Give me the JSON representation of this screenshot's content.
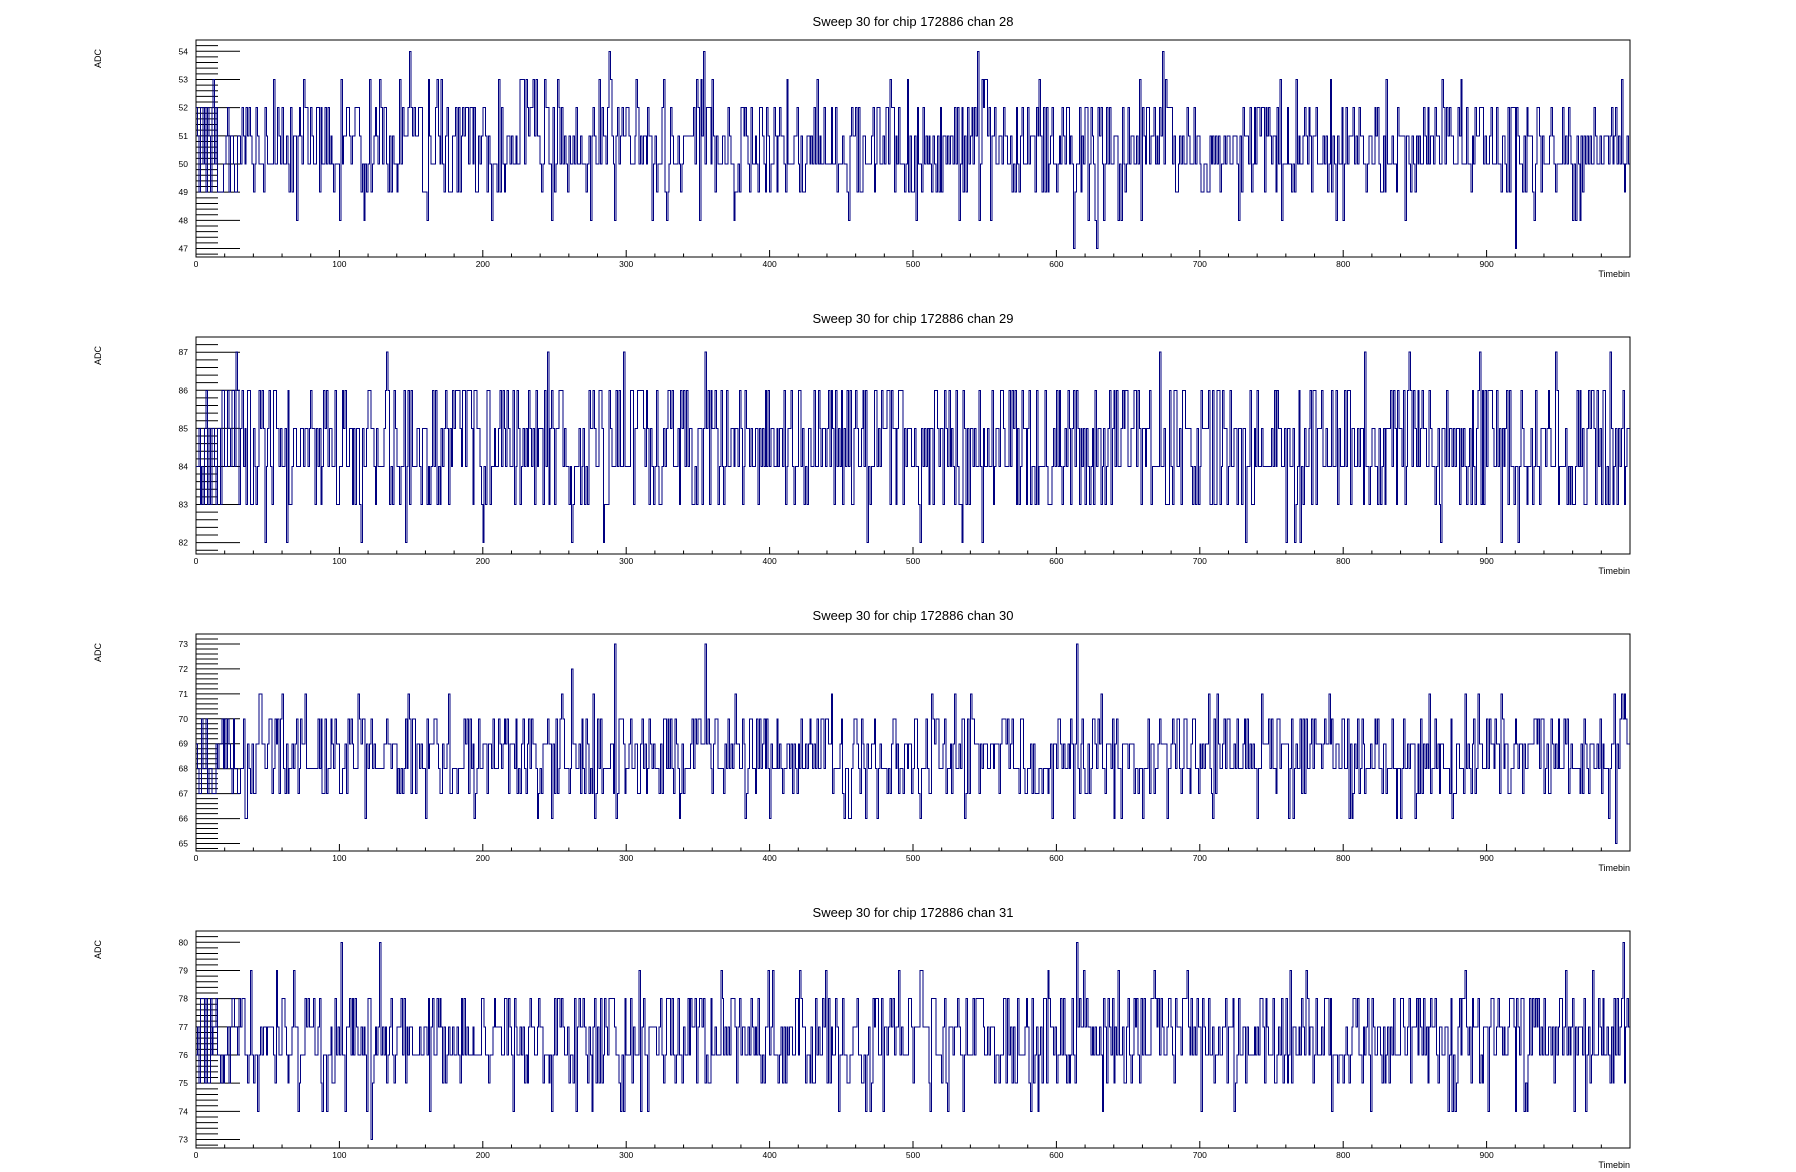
{
  "chart_data": [
    {
      "type": "line",
      "title": "Sweep 30 for chip 172886 chan 28",
      "xlabel": "Timebin",
      "ylabel": "ADC",
      "xlim": [
        0,
        1000
      ],
      "ylim": [
        46.7,
        54.4
      ],
      "x_ticks": [
        0,
        100,
        200,
        300,
        400,
        500,
        600,
        700,
        800,
        900
      ],
      "y_ticks": [
        47,
        48,
        49,
        50,
        51,
        52,
        53,
        54
      ],
      "color": "#000080",
      "step": true,
      "baseline": 50,
      "spikes": [
        {
          "x": 12,
          "y": 53
        },
        {
          "x": 48,
          "y": 52
        },
        {
          "x": 70,
          "y": 48
        },
        {
          "x": 75,
          "y": 53
        },
        {
          "x": 100,
          "y": 48
        },
        {
          "x": 142,
          "y": 53
        },
        {
          "x": 149,
          "y": 54
        },
        {
          "x": 230,
          "y": 53
        },
        {
          "x": 248,
          "y": 48
        },
        {
          "x": 281,
          "y": 53
        },
        {
          "x": 288,
          "y": 54
        },
        {
          "x": 292,
          "y": 48
        },
        {
          "x": 318,
          "y": 48
        },
        {
          "x": 354,
          "y": 54
        },
        {
          "x": 375,
          "y": 48
        },
        {
          "x": 412,
          "y": 53
        },
        {
          "x": 464,
          "y": 49
        },
        {
          "x": 484,
          "y": 53
        },
        {
          "x": 502,
          "y": 48
        },
        {
          "x": 532,
          "y": 48
        },
        {
          "x": 545,
          "y": 54
        },
        {
          "x": 612,
          "y": 47
        },
        {
          "x": 628,
          "y": 47
        },
        {
          "x": 633,
          "y": 48
        },
        {
          "x": 659,
          "y": 48
        },
        {
          "x": 658,
          "y": 53
        },
        {
          "x": 674,
          "y": 54
        },
        {
          "x": 676,
          "y": 53
        },
        {
          "x": 757,
          "y": 48
        },
        {
          "x": 800,
          "y": 48
        },
        {
          "x": 791,
          "y": 53
        },
        {
          "x": 843,
          "y": 48
        },
        {
          "x": 869,
          "y": 53
        },
        {
          "x": 920,
          "y": 47
        },
        {
          "x": 933,
          "y": 48
        },
        {
          "x": 962,
          "y": 48
        },
        {
          "x": 994,
          "y": 53
        }
      ]
    },
    {
      "type": "line",
      "title": "Sweep 30 for chip 172886 chan 29",
      "xlabel": "Timebin",
      "ylabel": "ADC",
      "xlim": [
        0,
        1000
      ],
      "ylim": [
        81.7,
        87.4
      ],
      "x_ticks": [
        0,
        100,
        200,
        300,
        400,
        500,
        600,
        700,
        800,
        900
      ],
      "y_ticks": [
        82,
        83,
        84,
        85,
        86,
        87
      ],
      "color": "#000080",
      "step": true,
      "baseline": 84,
      "spikes": [
        {
          "x": 28,
          "y": 87
        },
        {
          "x": 48,
          "y": 82
        },
        {
          "x": 63,
          "y": 82
        },
        {
          "x": 115,
          "y": 82
        },
        {
          "x": 133,
          "y": 87
        },
        {
          "x": 146,
          "y": 82
        },
        {
          "x": 200,
          "y": 82
        },
        {
          "x": 245,
          "y": 87
        },
        {
          "x": 262,
          "y": 82
        },
        {
          "x": 284,
          "y": 82
        },
        {
          "x": 298,
          "y": 87
        },
        {
          "x": 355,
          "y": 87
        },
        {
          "x": 468,
          "y": 82
        },
        {
          "x": 505,
          "y": 82
        },
        {
          "x": 534,
          "y": 82
        },
        {
          "x": 548,
          "y": 82
        },
        {
          "x": 672,
          "y": 87
        },
        {
          "x": 732,
          "y": 82
        },
        {
          "x": 760,
          "y": 82
        },
        {
          "x": 766,
          "y": 82
        },
        {
          "x": 770,
          "y": 82
        },
        {
          "x": 815,
          "y": 87
        },
        {
          "x": 846,
          "y": 87
        },
        {
          "x": 868,
          "y": 82
        },
        {
          "x": 895,
          "y": 87
        },
        {
          "x": 910,
          "y": 82
        },
        {
          "x": 922,
          "y": 82
        },
        {
          "x": 948,
          "y": 87
        },
        {
          "x": 986,
          "y": 87
        }
      ]
    },
    {
      "type": "line",
      "title": "Sweep 30 for chip 172886 chan 30",
      "xlabel": "Timebin",
      "ylabel": "ADC",
      "xlim": [
        0,
        1000
      ],
      "ylim": [
        64.7,
        73.4
      ],
      "x_ticks": [
        0,
        100,
        200,
        300,
        400,
        500,
        600,
        700,
        800,
        900
      ],
      "y_ticks": [
        65,
        66,
        67,
        68,
        69,
        70,
        71,
        72,
        73
      ],
      "color": "#000080",
      "step": true,
      "baseline": 68,
      "spikes": [
        {
          "x": 35,
          "y": 66
        },
        {
          "x": 60,
          "y": 71
        },
        {
          "x": 76,
          "y": 71
        },
        {
          "x": 118,
          "y": 66
        },
        {
          "x": 148,
          "y": 71
        },
        {
          "x": 248,
          "y": 66
        },
        {
          "x": 262,
          "y": 72
        },
        {
          "x": 278,
          "y": 66
        },
        {
          "x": 292,
          "y": 73
        },
        {
          "x": 355,
          "y": 73
        },
        {
          "x": 383,
          "y": 66
        },
        {
          "x": 475,
          "y": 66
        },
        {
          "x": 505,
          "y": 66
        },
        {
          "x": 540,
          "y": 71
        },
        {
          "x": 614,
          "y": 73
        },
        {
          "x": 612,
          "y": 66
        },
        {
          "x": 645,
          "y": 66
        },
        {
          "x": 712,
          "y": 71
        },
        {
          "x": 740,
          "y": 66
        },
        {
          "x": 762,
          "y": 66
        },
        {
          "x": 790,
          "y": 71
        },
        {
          "x": 840,
          "y": 66
        },
        {
          "x": 860,
          "y": 71
        },
        {
          "x": 910,
          "y": 71
        },
        {
          "x": 990,
          "y": 65
        },
        {
          "x": 994,
          "y": 71
        }
      ]
    },
    {
      "type": "line",
      "title": "Sweep 30 for chip 172886 chan 31",
      "xlabel": "Timebin",
      "ylabel": "ADC",
      "xlim": [
        0,
        1000
      ],
      "ylim": [
        72.7,
        80.4
      ],
      "x_ticks": [
        0,
        100,
        200,
        300,
        400,
        500,
        600,
        700,
        800,
        900
      ],
      "y_ticks": [
        73,
        74,
        75,
        76,
        77,
        78,
        79,
        80
      ],
      "color": "#000080",
      "step": true,
      "baseline": 76,
      "spikes": [
        {
          "x": 38,
          "y": 79
        },
        {
          "x": 101,
          "y": 80
        },
        {
          "x": 104,
          "y": 74
        },
        {
          "x": 122,
          "y": 73
        },
        {
          "x": 128,
          "y": 80
        },
        {
          "x": 248,
          "y": 74
        },
        {
          "x": 276,
          "y": 74
        },
        {
          "x": 296,
          "y": 74
        },
        {
          "x": 402,
          "y": 79
        },
        {
          "x": 470,
          "y": 74
        },
        {
          "x": 505,
          "y": 79
        },
        {
          "x": 512,
          "y": 74
        },
        {
          "x": 582,
          "y": 74
        },
        {
          "x": 614,
          "y": 80
        },
        {
          "x": 632,
          "y": 74
        },
        {
          "x": 668,
          "y": 79
        },
        {
          "x": 724,
          "y": 74
        },
        {
          "x": 792,
          "y": 74
        },
        {
          "x": 878,
          "y": 74
        },
        {
          "x": 885,
          "y": 79
        },
        {
          "x": 920,
          "y": 74
        },
        {
          "x": 995,
          "y": 80
        }
      ]
    }
  ]
}
